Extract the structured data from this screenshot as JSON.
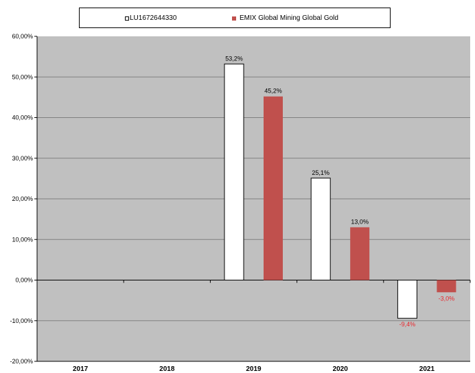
{
  "chart_data": {
    "type": "bar",
    "categories": [
      "2017",
      "2018",
      "2019",
      "2020",
      "2021"
    ],
    "series": [
      {
        "name": "LU1672644330",
        "color": "#ffffff",
        "values": [
          null,
          null,
          53.2,
          25.1,
          -9.4
        ],
        "labels": [
          "",
          "",
          "53,2%",
          "25,1%",
          "-9,4%"
        ]
      },
      {
        "name": "EMIX Global Mining Global Gold",
        "color": "#c0504d",
        "values": [
          null,
          null,
          45.2,
          13.0,
          -3.0
        ],
        "labels": [
          "",
          "",
          "45,2%",
          "13,0%",
          "-3,0%"
        ]
      }
    ],
    "yTicks": [
      "-20,00%",
      "-10,00%",
      "0,00%",
      "10,00%",
      "20,00%",
      "30,00%",
      "40,00%",
      "50,00%",
      "60,00%"
    ],
    "ylim": [
      -20,
      60
    ],
    "ystep": 10,
    "grid": true,
    "plotBackground": "#c0c0c0",
    "negativeLabelColor": "#e8262c",
    "legendPosition": "top"
  }
}
